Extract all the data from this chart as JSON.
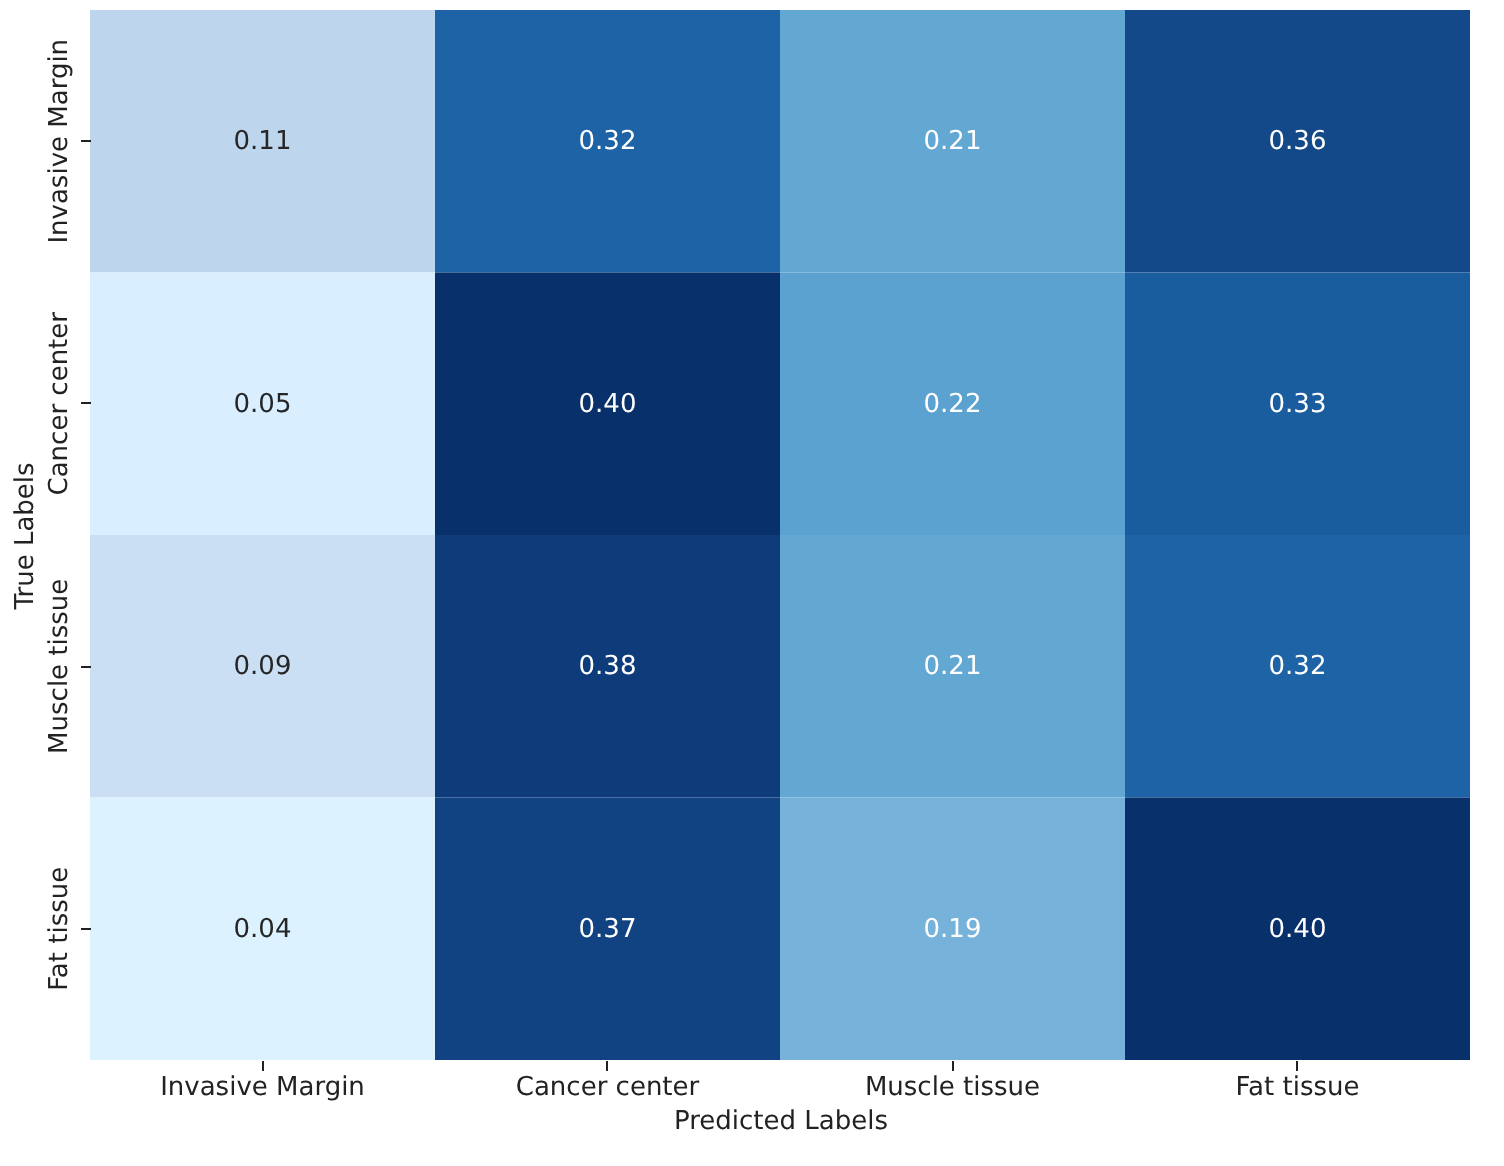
{
  "chart_data": {
    "type": "heatmap",
    "xlabel": "Predicted Labels",
    "ylabel": "True Labels",
    "categories": [
      "Invasive Margin",
      "Cancer center",
      "Muscle tissue",
      "Fat tissue"
    ],
    "y_categories": [
      "Invasive Margin",
      "Cancer center",
      "Muscle tissue",
      "Fat tissue"
    ],
    "cells": [
      [
        0.11,
        0.32,
        0.21,
        0.36
      ],
      [
        0.05,
        0.4,
        0.22,
        0.33
      ],
      [
        0.09,
        0.38,
        0.21,
        0.32
      ],
      [
        0.04,
        0.37,
        0.19,
        0.4
      ]
    ],
    "cell_labels": [
      [
        "0.11",
        "0.32",
        "0.21",
        "0.36"
      ],
      [
        "0.05",
        "0.40",
        "0.22",
        "0.33"
      ],
      [
        "0.09",
        "0.38",
        "0.21",
        "0.32"
      ],
      [
        "0.04",
        "0.37",
        "0.19",
        "0.40"
      ]
    ],
    "data_labels": true
  }
}
